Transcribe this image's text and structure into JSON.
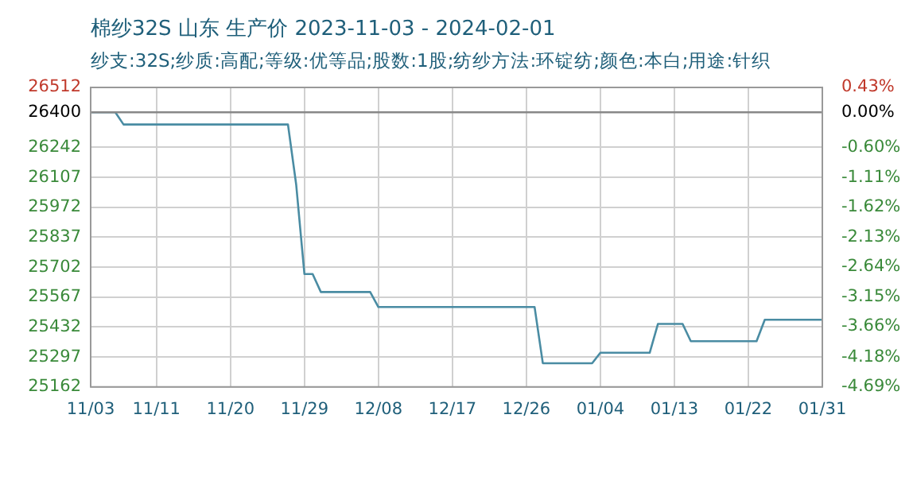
{
  "chart_data": {
    "type": "line",
    "title": "棉纱32S 山东 生产价 2023-11-03 - 2024-02-01",
    "subtitle": "纱支:32S;纱质:高配;等级:优等品;股数:1股;纺纱方法:环锭纺;颜色:本白;用途:针织",
    "x": [
      "2023-11-03",
      "2023-11-06",
      "2023-11-07",
      "2023-11-27",
      "2023-11-28",
      "2023-11-29",
      "2023-11-30",
      "2023-12-01",
      "2023-12-07",
      "2023-12-08",
      "2023-12-27",
      "2023-12-28",
      "2024-01-03",
      "2024-01-04",
      "2024-01-10",
      "2024-01-11",
      "2024-01-14",
      "2024-01-15",
      "2024-01-23",
      "2024-01-24",
      "2024-01-31"
    ],
    "series": [
      {
        "color": "#4a8ca3",
        "values": [
          26400,
          26400,
          26345,
          26345,
          26074,
          25671,
          25671,
          25590,
          25590,
          25522,
          25522,
          25269,
          25269,
          25316,
          25316,
          25446,
          25446,
          25368,
          25368,
          25465,
          25465
        ]
      }
    ],
    "xlim": [
      "2023-11-03",
      "2024-01-31"
    ],
    "xticks": [
      {
        "value": "2023-11-03",
        "label": "11/03"
      },
      {
        "value": "2023-11-11",
        "label": "11/11"
      },
      {
        "value": "2023-11-20",
        "label": "11/20"
      },
      {
        "value": "2023-11-29",
        "label": "11/29"
      },
      {
        "value": "2023-12-08",
        "label": "12/08"
      },
      {
        "value": "2023-12-17",
        "label": "12/17"
      },
      {
        "value": "2023-12-26",
        "label": "12/26"
      },
      {
        "value": "2024-01-04",
        "label": "01/04"
      },
      {
        "value": "2024-01-13",
        "label": "01/13"
      },
      {
        "value": "2024-01-22",
        "label": "01/22"
      },
      {
        "value": "2024-01-31",
        "label": "01/31"
      }
    ],
    "ylim": [
      25162,
      26512
    ],
    "yticks": [
      25162,
      25297,
      25432,
      25567,
      25702,
      25837,
      25972,
      26107,
      26242,
      26400,
      26512
    ],
    "y2lim": [
      -4.69,
      0.43
    ],
    "y2ticks": [
      {
        "value": -4.69,
        "label": "-4.69%"
      },
      {
        "value": -4.18,
        "label": "-4.18%"
      },
      {
        "value": -3.66,
        "label": "-3.66%"
      },
      {
        "value": -3.15,
        "label": "-3.15%"
      },
      {
        "value": -2.64,
        "label": "-2.64%"
      },
      {
        "value": -2.13,
        "label": "-2.13%"
      },
      {
        "value": -1.62,
        "label": "-1.62%"
      },
      {
        "value": -1.11,
        "label": "-1.11%"
      },
      {
        "value": -0.6,
        "label": "-0.60%"
      },
      {
        "value": 0,
        "label": "0.00%"
      },
      {
        "value": 0.43,
        "label": "0.43%"
      }
    ],
    "ref_lines": [
      {
        "axis": "y",
        "value": 26400,
        "color": "#888888"
      }
    ],
    "grid": true,
    "legend": false,
    "marker": "none",
    "line_style": "solid"
  }
}
